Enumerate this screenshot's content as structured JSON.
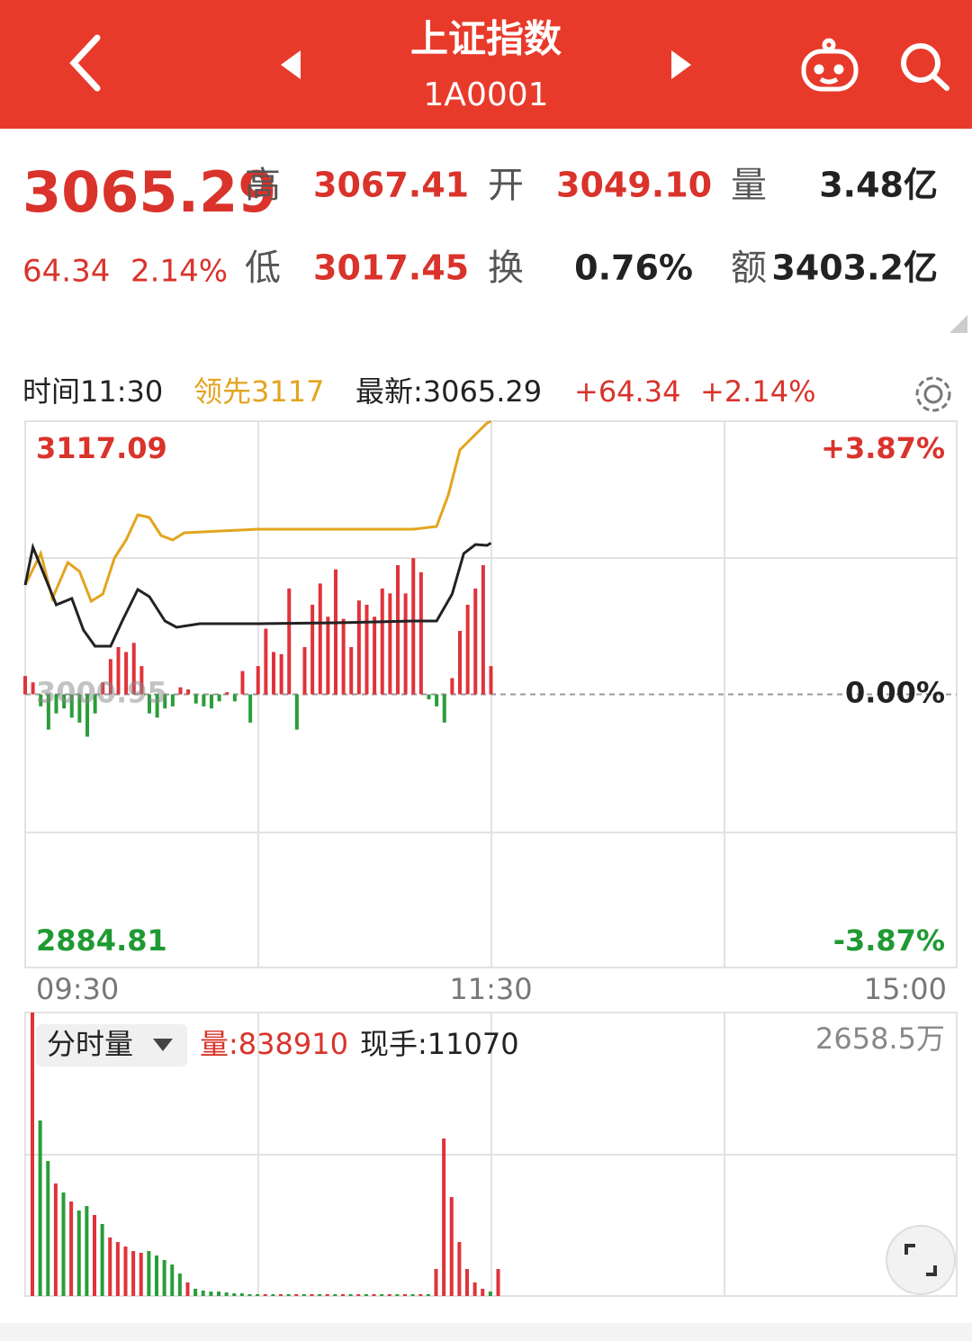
{
  "header": {
    "title": "上证指数",
    "code": "1A0001"
  },
  "quote": {
    "price": "3065.29",
    "change": "64.34",
    "change_pct": "2.14%",
    "fields": [
      {
        "label": "高",
        "value": "3067.41",
        "color": "#d9332b"
      },
      {
        "label": "开",
        "value": "3049.10",
        "color": "#d9332b"
      },
      {
        "label": "量",
        "value": "3.48亿",
        "color": "#222"
      },
      {
        "label": "低",
        "value": "3017.45",
        "color": "#d9332b"
      },
      {
        "label": "换",
        "value": "0.76%",
        "color": "#222"
      },
      {
        "label": "额",
        "value": "3403.2亿",
        "color": "#222"
      }
    ]
  },
  "cursor": {
    "time": "时间11:30",
    "lead": "领先3117",
    "latest": "最新:3065.29",
    "change": "+64.34",
    "change_pct": "+2.14%"
  },
  "volume_panel": {
    "title": "分时量",
    "volume": "量:838910",
    "hand": "现手:11070"
  },
  "chart_data": [
    {
      "type": "line",
      "x": [
        "09:30",
        "09:32",
        "09:34",
        "09:36",
        "09:38",
        "09:40",
        "09:42",
        "09:44",
        "09:46",
        "09:48",
        "09:50",
        "09:52",
        "09:54",
        "09:56",
        "09:58",
        "10:00",
        "10:02",
        "10:04",
        "10:06",
        "10:08",
        "10:10",
        "10:12",
        "10:14",
        "10:16",
        "10:18",
        "10:20",
        "10:22",
        "10:24",
        "10:26",
        "10:28",
        "10:30",
        "10:32",
        "10:34",
        "10:36",
        "10:38",
        "10:40",
        "10:42",
        "10:44",
        "10:46",
        "10:48",
        "10:50",
        "10:52",
        "10:54",
        "10:56",
        "10:58",
        "11:00",
        "11:02",
        "11:04",
        "11:06",
        "11:08",
        "11:10",
        "11:12",
        "11:14",
        "11:16",
        "11:18",
        "11:20",
        "11:22",
        "11:24",
        "11:26",
        "11:28",
        "11:30"
      ],
      "xticks": [
        "09:30",
        "11:30",
        "15:00"
      ],
      "ylim": [
        2884.81,
        3117.09
      ],
      "yticks": [
        3117.09,
        3000.95,
        2884.81
      ],
      "y2lim": [
        -3.87,
        3.87
      ],
      "y2ticks": [
        {
          "value": 3.87,
          "label": "+3.87%"
        },
        {
          "value": 0,
          "label": "0.00%"
        },
        {
          "value": -3.87,
          "label": "-3.87%"
        }
      ],
      "tick_colors": [
        "#d9332b",
        "#888888",
        "#1f9a32"
      ],
      "series": [
        {
          "color": "#e3a41e",
          "x": [
            "09:30",
            "09:34",
            "09:37",
            "09:41",
            "09:44",
            "09:47",
            "09:50",
            "09:53",
            "09:56",
            "09:59",
            "10:02",
            "10:05",
            "10:08",
            "10:11",
            "10:30",
            "11:10",
            "11:16",
            "11:19",
            "11:22",
            "11:25",
            "11:29",
            "11:30"
          ],
          "values": [
            3047.44,
            3060.83,
            3041.7,
            3057.01,
            3053.18,
            3040.55,
            3043.61,
            3058.92,
            3066.57,
            3077.29,
            3076.14,
            3068.49,
            3066.57,
            3069.63,
            3071.17,
            3071.17,
            3072.31,
            3085.71,
            3104.84,
            3109.82,
            3116.32,
            3117.09
          ]
        },
        {
          "color": "#222222",
          "x": [
            "09:30",
            "09:32",
            "09:35",
            "09:38",
            "09:42",
            "09:45",
            "09:48",
            "09:52",
            "09:55",
            "09:59",
            "10:02",
            "10:06",
            "10:09",
            "10:15",
            "10:30",
            "10:50",
            "11:10",
            "11:16",
            "11:20",
            "11:23",
            "11:26",
            "11:29",
            "11:30"
          ],
          "values": [
            3047.44,
            3063.51,
            3051.27,
            3039.02,
            3041.7,
            3028.3,
            3021.41,
            3021.41,
            3032.13,
            3045.52,
            3042.46,
            3032.13,
            3029.45,
            3030.98,
            3030.98,
            3031.36,
            3032.13,
            3032.13,
            3043.61,
            3060.83,
            3064.66,
            3064.28,
            3065.29
          ]
        },
        {
          "type": "bar",
          "axis": "y2",
          "up_color": "#e0333a",
          "down_color": "#2a9d3a",
          "values": [
            0.26,
            0.17,
            -0.17,
            -0.5,
            -0.27,
            -0.2,
            -0.33,
            -0.4,
            -0.6,
            -0.27,
            0.17,
            0.5,
            0.67,
            0.6,
            0.73,
            0.4,
            -0.27,
            -0.33,
            -0.2,
            -0.17,
            0.1,
            0.07,
            -0.13,
            -0.17,
            -0.2,
            -0.1,
            0.03,
            -0.1,
            0.33,
            -0.4,
            0.4,
            0.93,
            0.6,
            0.57,
            1.5,
            -0.5,
            0.67,
            1.27,
            1.57,
            1.1,
            1.77,
            1.07,
            0.67,
            1.33,
            1.27,
            1.1,
            1.5,
            1.43,
            1.83,
            1.43,
            1.93,
            1.73,
            -0.07,
            -0.17,
            -0.4,
            0.23,
            0.9,
            1.27,
            1.5,
            1.83,
            0.4
          ]
        }
      ]
    },
    {
      "type": "bar",
      "ylim": [
        0,
        2658.5
      ],
      "yticks": [
        {
          "value": 2658.5,
          "label": "2658.5万"
        }
      ],
      "up_color": "#e0333a",
      "down_color": "#2a9d3a",
      "values": [
        2658.5,
        1646,
        1266,
        1055,
        971,
        886,
        802,
        844,
        760,
        675,
        549,
        506,
        464,
        422,
        405,
        422,
        380,
        338,
        295,
        211,
        127,
        68,
        51,
        42,
        42,
        34,
        25,
        25,
        17,
        17,
        17,
        17,
        17,
        17,
        17,
        17,
        17,
        17,
        17,
        17,
        17,
        17,
        17,
        17,
        17,
        17,
        17,
        17,
        17,
        17,
        17,
        17,
        253,
        1477,
        928,
        506,
        253,
        127,
        68,
        42,
        253
      ],
      "up": [
        true,
        false,
        false,
        true,
        false,
        true,
        false,
        false,
        true,
        false,
        true,
        true,
        true,
        true,
        true,
        false,
        false,
        false,
        false,
        false,
        true,
        false,
        false,
        false,
        false,
        false,
        false,
        false,
        false,
        false,
        true,
        false,
        true,
        false,
        true,
        false,
        true,
        false,
        true,
        false,
        true,
        false,
        true,
        false,
        true,
        false,
        true,
        false,
        true,
        false,
        true,
        false,
        true,
        true,
        true,
        true,
        true,
        true,
        true,
        false,
        true
      ]
    }
  ]
}
